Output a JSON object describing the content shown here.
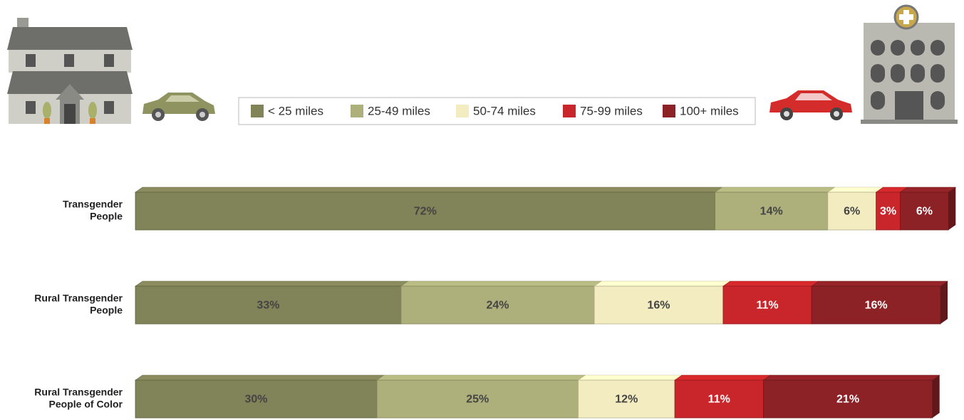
{
  "chart_data": {
    "type": "stacked_bar_horizontal",
    "categories": [
      [
        "Transgender",
        "People"
      ],
      [
        "Rural Transgender",
        "People"
      ],
      [
        "Rural Transgender",
        "People of Color"
      ]
    ],
    "series": [
      {
        "name": "< 25 miles",
        "color": "#818358",
        "values": [
          72,
          33,
          30
        ],
        "value_labels": [
          "72%",
          "33%",
          "30%"
        ]
      },
      {
        "name": "25-49 miles",
        "color": "#adb07a",
        "values": [
          14,
          24,
          25
        ],
        "value_labels": [
          "14%",
          "24%",
          "25%"
        ]
      },
      {
        "name": "50-74 miles",
        "color": "#f2ecc0",
        "values": [
          6,
          16,
          12
        ],
        "value_labels": [
          "6%",
          "16%",
          "12%"
        ]
      },
      {
        "name": "75-99 miles",
        "color": "#c8262a",
        "values": [
          3,
          11,
          11
        ],
        "value_labels": [
          "3%",
          "11%",
          "11%"
        ]
      },
      {
        "name": "100+ miles",
        "color": "#8c2126",
        "values": [
          6,
          16,
          21
        ],
        "value_labels": [
          "6%",
          "16%",
          "21%"
        ]
      }
    ],
    "xlim": [
      0,
      100
    ]
  }
}
